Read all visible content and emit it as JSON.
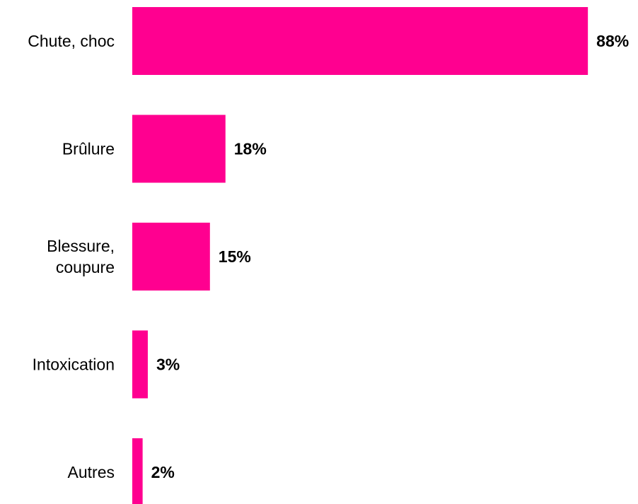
{
  "chart_data": {
    "type": "bar",
    "orientation": "horizontal",
    "title": "",
    "xlabel": "",
    "ylabel": "",
    "categories": [
      [
        "Chute, choc"
      ],
      [
        "Brûlure"
      ],
      [
        "Blessure,",
        "coupure"
      ],
      [
        "Intoxication"
      ],
      [
        "Autres"
      ]
    ],
    "values": [
      88,
      18,
      15,
      3,
      2
    ],
    "value_labels": [
      "88%",
      "18%",
      "15%",
      "3%",
      "2%"
    ],
    "xlim": [
      0,
      100
    ],
    "grid": false,
    "legend": "none",
    "bar_color": "#FF0090"
  }
}
